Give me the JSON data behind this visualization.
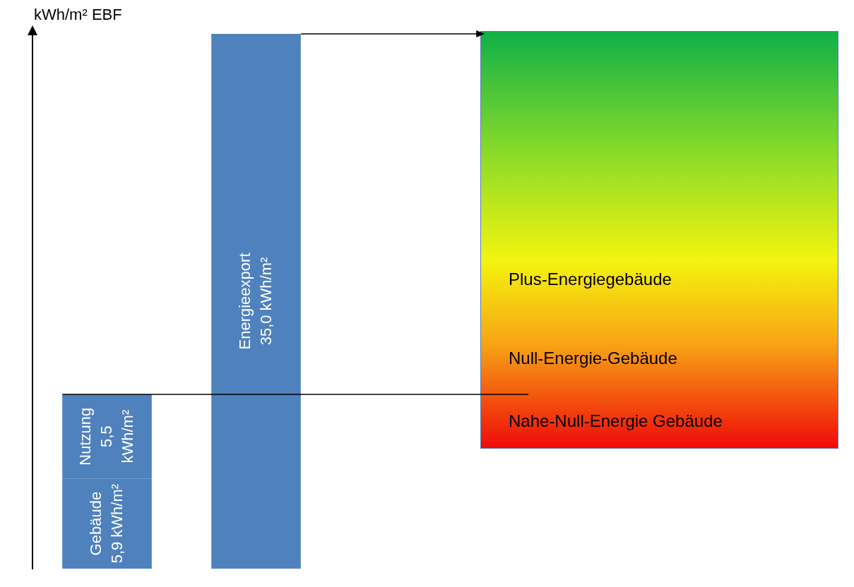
{
  "chart_data": {
    "type": "bar",
    "stacked": true,
    "categories": [
      null,
      null
    ],
    "ylabel": "kWh/m² EBF",
    "tick_labels": false,
    "grid": false,
    "legend": false,
    "series": [
      {
        "name": "Gebäude",
        "color": "#4f81bd",
        "values": [
          5.9,
          null
        ],
        "value_labels": [
          "5,9 kWh/m²",
          null
        ]
      },
      {
        "name": "Nutzung",
        "color": "#4f81bd",
        "values": [
          5.5,
          null
        ],
        "value_labels": [
          "5,5 kWh/m²",
          null
        ]
      },
      {
        "name": "Energieexport",
        "color": "#4f81bd",
        "values": [
          null,
          35.0
        ],
        "value_labels": [
          null,
          "35,0 kWh/m²"
        ]
      }
    ],
    "ref_lines": [
      {
        "axis": "y",
        "value": 11.4
      }
    ],
    "annotations": [
      "Plus-Energiegebäude",
      "Null-Energie-Gebäude",
      "Nahe-Null-Energie Gebäude"
    ]
  }
}
